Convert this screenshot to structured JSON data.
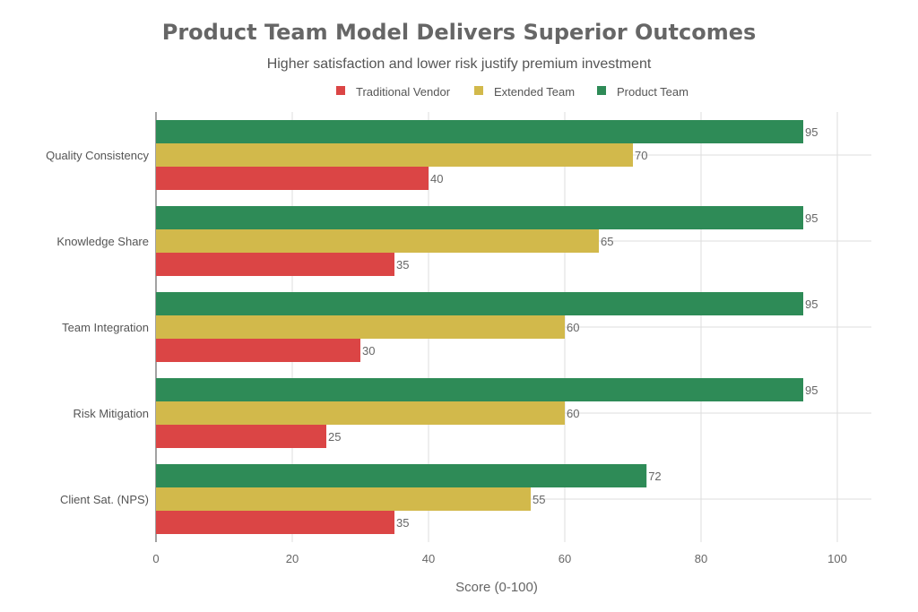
{
  "chart_data": {
    "type": "bar",
    "orientation": "horizontal",
    "title": "Product Team Model Delivers Superior Outcomes",
    "subtitle": "Higher satisfaction and lower risk justify premium investment",
    "xlabel": "Score (0-100)",
    "ylabel": "",
    "xlim": [
      0,
      105
    ],
    "xticks": [
      0,
      20,
      40,
      60,
      80,
      100
    ],
    "grid": true,
    "legend_position": "top-center",
    "categories": [
      "Quality Consistency",
      "Knowledge Share",
      "Team Integration",
      "Risk Mitigation",
      "Client Sat. (NPS)"
    ],
    "series": [
      {
        "name": "Traditional Vendor",
        "color": "#db4545",
        "values": [
          40,
          35,
          30,
          25,
          35
        ]
      },
      {
        "name": "Extended Team",
        "color": "#d2b94b",
        "values": [
          70,
          65,
          60,
          60,
          55
        ]
      },
      {
        "name": "Product Team",
        "color": "#2e8b57",
        "values": [
          95,
          95,
          95,
          95,
          72
        ]
      }
    ]
  }
}
